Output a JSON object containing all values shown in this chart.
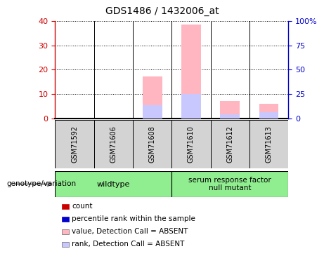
{
  "title": "GDS1486 / 1432006_at",
  "samples": [
    "GSM71592",
    "GSM71606",
    "GSM71608",
    "GSM71610",
    "GSM71612",
    "GSM71613"
  ],
  "x_positions": [
    0,
    1,
    2,
    3,
    4,
    5
  ],
  "value_absent": [
    0,
    0,
    17.2,
    38.5,
    7.0,
    6.0
  ],
  "rank_absent": [
    0,
    0,
    5.5,
    10.0,
    1.8,
    2.5
  ],
  "ylim_left": [
    0,
    40
  ],
  "ylim_right": [
    0,
    100
  ],
  "yticks_left": [
    0,
    10,
    20,
    30,
    40
  ],
  "yticks_right": [
    0,
    25,
    50,
    75,
    100
  ],
  "yticklabels_right": [
    "0",
    "25",
    "50",
    "75",
    "100%"
  ],
  "left_tick_color": "#cc0000",
  "right_tick_color": "#0000cc",
  "wildtype_label": "wildtype",
  "mutant_label": "serum response factor\nnull mutant",
  "group_color": "#90EE90",
  "group_label_prefix": "genotype/variation",
  "bar_width": 0.5,
  "color_value_absent": "#FFB6C1",
  "color_rank_absent": "#C8C8FF",
  "color_count": "#cc0000",
  "color_percentile": "#0000cc",
  "legend_items": [
    {
      "label": "count",
      "color": "#cc0000"
    },
    {
      "label": "percentile rank within the sample",
      "color": "#0000cc"
    },
    {
      "label": "value, Detection Call = ABSENT",
      "color": "#FFB6C1"
    },
    {
      "label": "rank, Detection Call = ABSENT",
      "color": "#C8C8FF"
    }
  ],
  "background_color": "#ffffff",
  "sample_bg": "#d3d3d3",
  "divider_color": "#000000"
}
